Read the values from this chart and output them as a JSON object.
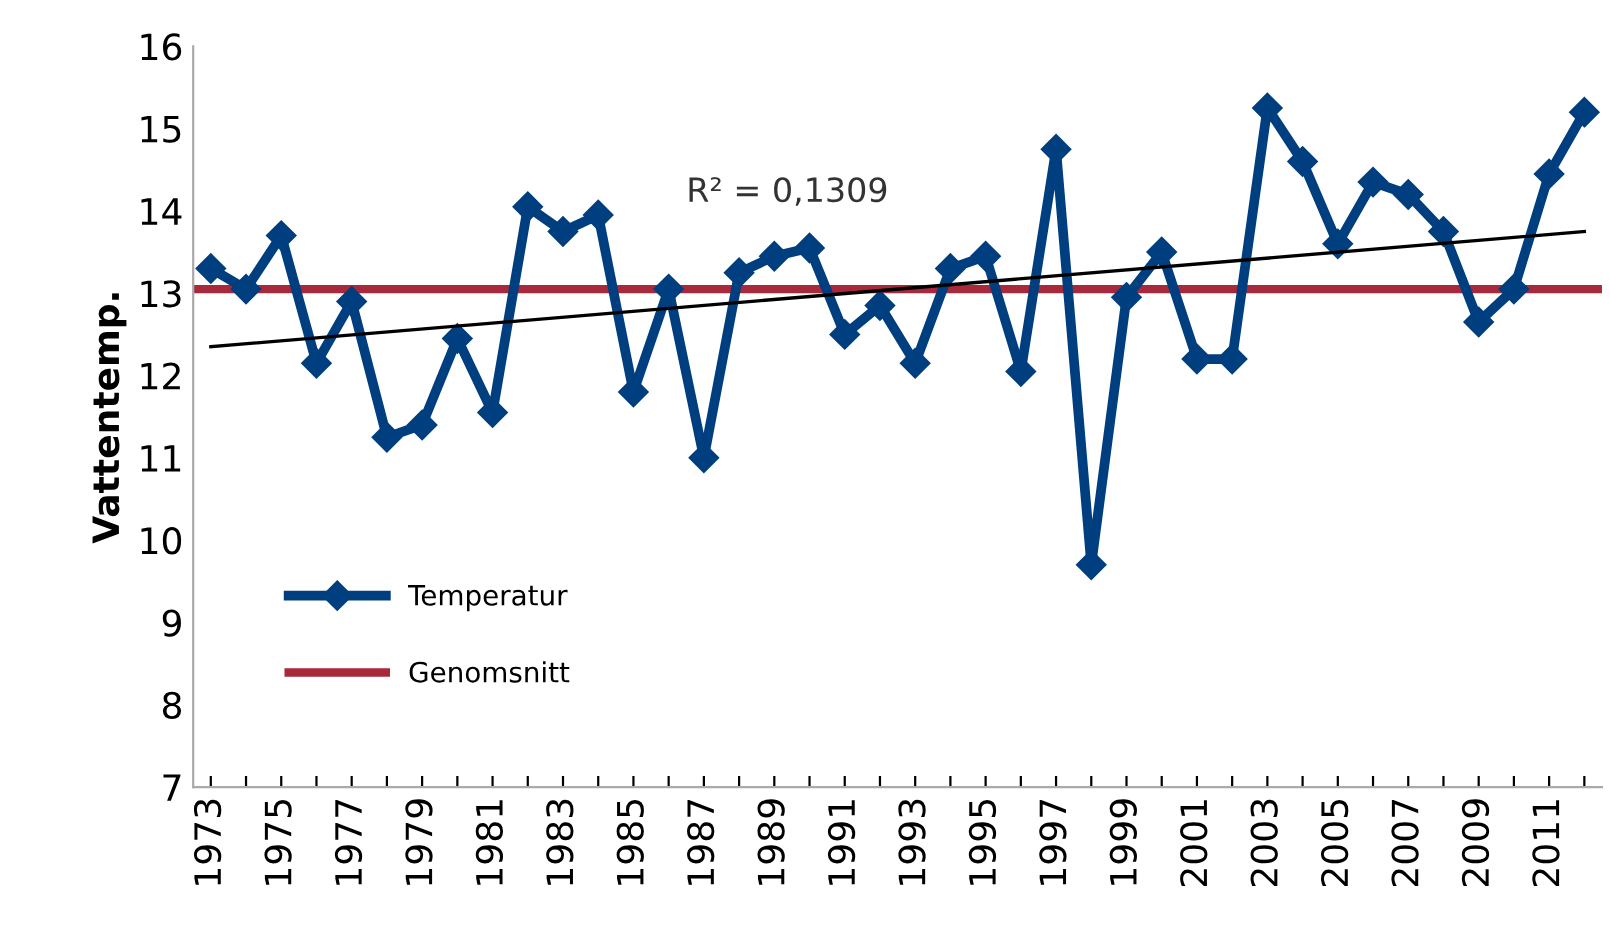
{
  "chart_data": {
    "type": "line",
    "ylabel": "Vattentemp.",
    "x": [
      1973,
      1974,
      1975,
      1976,
      1977,
      1978,
      1979,
      1980,
      1981,
      1982,
      1983,
      1984,
      1985,
      1986,
      1987,
      1988,
      1989,
      1990,
      1991,
      1992,
      1993,
      1994,
      1995,
      1996,
      1997,
      1998,
      1999,
      2000,
      2001,
      2002,
      2003,
      2004,
      2005,
      2006,
      2007,
      2008,
      2009,
      2010,
      2011,
      2012
    ],
    "series": [
      {
        "name": "Temperatur",
        "color": "#003f7f",
        "marker": "diamond",
        "values": [
          13.3,
          13.05,
          13.7,
          12.15,
          12.9,
          11.25,
          11.4,
          12.45,
          11.55,
          14.05,
          13.75,
          13.95,
          11.8,
          13.05,
          11.0,
          13.25,
          13.45,
          13.55,
          12.5,
          12.85,
          12.15,
          13.3,
          13.45,
          12.05,
          14.75,
          9.7,
          12.95,
          13.5,
          12.2,
          12.2,
          15.25,
          14.6,
          13.6,
          14.35,
          14.2,
          13.75,
          12.65,
          13.05,
          14.45,
          15.2
        ]
      },
      {
        "type": "line",
        "color": "#000000",
        "marker": "none",
        "x": [
          1973,
          2012
        ],
        "values": [
          12.35,
          13.75
        ]
      }
    ],
    "ref_lines": [
      {
        "axis": "y",
        "value": 13.05,
        "label": "Genomsnitt",
        "color": "#a8283c"
      }
    ],
    "annotations": [
      "R² = 0,1309"
    ],
    "xlim": [
      1972.5,
      2012.5
    ],
    "xticks": [
      1973,
      {
        "value": 1974,
        "label": null
      },
      1975,
      {
        "value": 1976,
        "label": null
      },
      1977,
      {
        "value": 1978,
        "label": null
      },
      1979,
      {
        "value": 1980,
        "label": null
      },
      1981,
      {
        "value": 1982,
        "label": null
      },
      1983,
      {
        "value": 1984,
        "label": null
      },
      1985,
      {
        "value": 1986,
        "label": null
      },
      1987,
      {
        "value": 1988,
        "label": null
      },
      1989,
      {
        "value": 1990,
        "label": null
      },
      1991,
      {
        "value": 1992,
        "label": null
      },
      1993,
      {
        "value": 1994,
        "label": null
      },
      1995,
      {
        "value": 1996,
        "label": null
      },
      1997,
      {
        "value": 1998,
        "label": null
      },
      1999,
      {
        "value": 2000,
        "label": null
      },
      2001,
      {
        "value": 2002,
        "label": null
      },
      2003,
      {
        "value": 2004,
        "label": null
      },
      2005,
      {
        "value": 2006,
        "label": null
      },
      2007,
      {
        "value": 2008,
        "label": null
      },
      2009,
      {
        "value": 2010,
        "label": null
      },
      2011,
      {
        "value": 2012,
        "label": null
      }
    ],
    "ylim": [
      7,
      16
    ],
    "yticks": [
      7,
      8,
      9,
      10,
      11,
      12,
      13,
      14,
      15,
      16
    ],
    "grid": false,
    "legend": "bottom left"
  }
}
